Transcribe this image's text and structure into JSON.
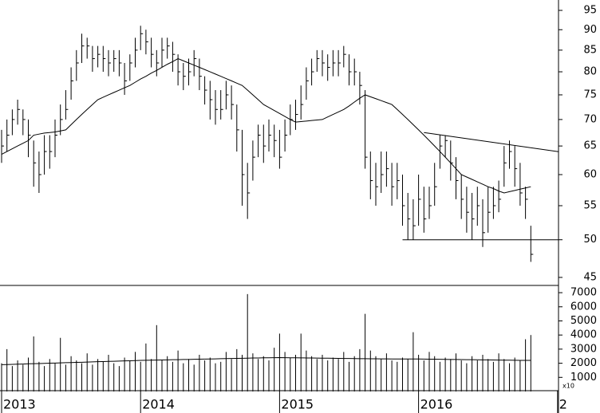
{
  "chart_data": {
    "type": "stock",
    "categories": [
      "2013",
      null,
      null,
      null,
      null,
      null,
      null,
      null,
      null,
      null,
      null,
      null,
      null,
      null,
      null,
      null,
      null,
      null,
      null,
      null,
      null,
      null,
      null,
      null,
      null,
      null,
      "2014",
      null,
      null,
      null,
      null,
      null,
      null,
      null,
      null,
      null,
      null,
      null,
      null,
      null,
      null,
      null,
      null,
      null,
      null,
      null,
      null,
      null,
      null,
      null,
      null,
      null,
      "2015",
      null,
      null,
      null,
      null,
      null,
      null,
      null,
      null,
      null,
      null,
      null,
      null,
      null,
      null,
      null,
      null,
      null,
      null,
      null,
      null,
      null,
      null,
      null,
      null,
      null,
      "2016",
      null,
      null,
      null,
      null,
      null,
      null,
      null,
      null,
      null,
      null,
      null,
      null,
      null,
      null,
      null,
      null,
      null,
      null,
      null,
      null,
      null,
      null,
      null,
      null,
      null,
      "2"
    ],
    "high": [
      68,
      70,
      72,
      74,
      72,
      70,
      66,
      64,
      67,
      67,
      70,
      73,
      76,
      81,
      85,
      89,
      88,
      86,
      86,
      86,
      85,
      85,
      85,
      82,
      84,
      88,
      91,
      90,
      88,
      85,
      88,
      88,
      87,
      84,
      82,
      83,
      85,
      83,
      79,
      78,
      76,
      76,
      78,
      77,
      73,
      68,
      62,
      66,
      69,
      69,
      70,
      69,
      68,
      70,
      73,
      74,
      77,
      81,
      83,
      85,
      85,
      84,
      85,
      85,
      86,
      84,
      83,
      80,
      76,
      64,
      62,
      64,
      64,
      62,
      62,
      60,
      57,
      56,
      60,
      58,
      58,
      62,
      67,
      67,
      66,
      63,
      60,
      58,
      57,
      58,
      56,
      58,
      58,
      59,
      65,
      66,
      65,
      62,
      58,
      52,
      null,
      null,
      null,
      null,
      null
    ],
    "low": [
      62,
      64,
      67,
      69,
      67,
      63,
      58,
      57,
      60,
      61,
      63,
      67,
      70,
      74,
      78,
      82,
      83,
      80,
      81,
      80,
      79,
      80,
      79,
      75,
      78,
      81,
      85,
      84,
      81,
      79,
      81,
      83,
      80,
      77,
      76,
      77,
      79,
      76,
      73,
      70,
      69,
      70,
      72,
      70,
      64,
      55,
      53,
      59,
      63,
      62,
      64,
      63,
      61,
      64,
      67,
      68,
      70,
      74,
      77,
      80,
      79,
      78,
      79,
      79,
      81,
      77,
      77,
      73,
      61,
      56,
      55,
      57,
      58,
      55,
      56,
      52,
      50,
      50,
      52,
      51,
      53,
      55,
      61,
      63,
      59,
      56,
      53,
      51,
      50,
      52,
      49,
      51,
      53,
      54,
      58,
      61,
      58,
      55,
      53,
      47,
      null,
      null,
      null,
      null,
      null
    ],
    "close": [
      65,
      67,
      70,
      72,
      70,
      67,
      62,
      60,
      64,
      64,
      67,
      70,
      72,
      78,
      82,
      86,
      86,
      83,
      84,
      83,
      82,
      83,
      82,
      78,
      82,
      85,
      89,
      87,
      84,
      82,
      85,
      86,
      84,
      80,
      79,
      80,
      83,
      79,
      76,
      74,
      72,
      72,
      75,
      73,
      68,
      60,
      57,
      63,
      67,
      65,
      67,
      66,
      63,
      67,
      70,
      71,
      73,
      78,
      80,
      83,
      82,
      81,
      82,
      82,
      84,
      80,
      80,
      77,
      63,
      59,
      58,
      60,
      61,
      58,
      59,
      55,
      53,
      52,
      56,
      53,
      55,
      58,
      65,
      66,
      62,
      59,
      56,
      54,
      53,
      55,
      51,
      54,
      55,
      56,
      62,
      64,
      61,
      57,
      56,
      48,
      null,
      null,
      null,
      null,
      null
    ],
    "moving_average": [
      63.5,
      64,
      64.5,
      65,
      65.5,
      66,
      67,
      67.2,
      67.4,
      67.5,
      67.6,
      67.8,
      68,
      69,
      70,
      71,
      72,
      73,
      74,
      74.5,
      75,
      75.5,
      76,
      76.5,
      77,
      77.7,
      78.4,
      79,
      79.7,
      80.3,
      81,
      81.7,
      82.3,
      83,
      82.5,
      82,
      81.5,
      81,
      80.5,
      80,
      79.5,
      79,
      78.5,
      78,
      77.5,
      77,
      76,
      75,
      74,
      73,
      72.4,
      71.8,
      71.2,
      70.6,
      70,
      69.5,
      69.6,
      69.7,
      69.8,
      69.9,
      70,
      70.5,
      71,
      71.5,
      72,
      72.7,
      73.5,
      74.3,
      75,
      74.6,
      74.2,
      73.8,
      73.4,
      73,
      72,
      71,
      70,
      69,
      68,
      67,
      66,
      65,
      64,
      63,
      62,
      61,
      60,
      59.6,
      59.2,
      58.8,
      58.4,
      58,
      57.7,
      57.3,
      57,
      57.2,
      57.4,
      57.6,
      57.8,
      58,
      null,
      null,
      null,
      null,
      null
    ],
    "volume": [
      2000,
      3000,
      1800,
      2200,
      1900,
      2400,
      3900,
      2100,
      1800,
      2300,
      2000,
      3800,
      1900,
      2500,
      2200,
      2000,
      2700,
      1900,
      2300,
      2100,
      2600,
      2000,
      1800,
      2400,
      2200,
      2800,
      2100,
      3400,
      2300,
      4700,
      2200,
      2500,
      2100,
      2900,
      2000,
      2300,
      1900,
      2600,
      2200,
      2400,
      2000,
      2100,
      2800,
      2300,
      3000,
      2600,
      6900,
      2700,
      2300,
      2500,
      2200,
      3100,
      4100,
      2800,
      2400,
      2600,
      4100,
      2900,
      2500,
      2300,
      2600,
      2200,
      2400,
      2300,
      2800,
      2100,
      2500,
      3000,
      5500,
      2900,
      2500,
      2300,
      2700,
      2200,
      2100,
      2400,
      2300,
      4200,
      2600,
      2200,
      2800,
      2500,
      2100,
      2400,
      2300,
      2700,
      2200,
      2000,
      2500,
      2200,
      2600,
      2300,
      2100,
      2700,
      2300,
      2000,
      2400,
      2200,
      3700,
      4000,
      null,
      null,
      null,
      null,
      null
    ],
    "volume_average": [
      1900,
      1910,
      1920,
      1935,
      1945,
      1960,
      1970,
      1980,
      1990,
      2005,
      2015,
      2025,
      2040,
      2050,
      2060,
      2070,
      2085,
      2095,
      2110,
      2120,
      2130,
      2140,
      2155,
      2165,
      2175,
      2190,
      2200,
      2210,
      2215,
      2225,
      2230,
      2240,
      2250,
      2255,
      2265,
      2270,
      2280,
      2290,
      2295,
      2305,
      2310,
      2320,
      2330,
      2335,
      2345,
      2350,
      2360,
      2370,
      2375,
      2385,
      2390,
      2395,
      2400,
      2395,
      2390,
      2385,
      2380,
      2375,
      2370,
      2365,
      2360,
      2355,
      2350,
      2345,
      2340,
      2335,
      2330,
      2325,
      2320,
      2315,
      2315,
      2310,
      2310,
      2305,
      2305,
      2300,
      2300,
      2300,
      2300,
      2295,
      2290,
      2285,
      2280,
      2275,
      2270,
      2265,
      2260,
      2255,
      2250,
      2245,
      2240,
      2235,
      2230,
      2225,
      2220,
      2215,
      2210,
      2205,
      2200,
      2200,
      null,
      null,
      null,
      null,
      null
    ],
    "support_line": {
      "start": 75,
      "end": 104,
      "value": 50
    },
    "resistance_line": {
      "start": 79,
      "end": 104,
      "values": [
        67.5,
        64
      ]
    },
    "ylim": [
      44,
      97.8
    ],
    "yticks": [
      45,
      50,
      55,
      60,
      65,
      70,
      75,
      80,
      85,
      90,
      95
    ],
    "log_scale": true,
    "volume_ylim": [
      0,
      7400
    ],
    "volume_yticks": [
      1000,
      2000,
      3000,
      4000,
      5000,
      6000,
      7000
    ],
    "volume_multiplier_label": "x10",
    "color": "#000000"
  }
}
